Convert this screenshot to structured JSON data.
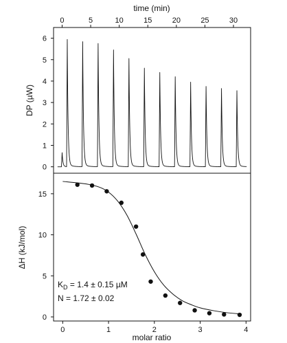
{
  "chart_data": [
    {
      "type": "line",
      "panel": "top",
      "xlabel": "time (min)",
      "ylabel": "DP (µW)",
      "xlim": [
        -1.5,
        33
      ],
      "ylim": [
        -0.3,
        6.5
      ],
      "x_ticks": [
        0,
        5,
        10,
        15,
        20,
        25,
        30
      ],
      "y_ticks": [
        0,
        1,
        2,
        3,
        4,
        5,
        6
      ],
      "grid": false,
      "baseline": 0,
      "series": [
        {
          "injection_time": [
            0.0,
            0.9,
            3.6,
            6.3,
            9.0,
            11.7,
            14.4,
            17.1,
            19.8,
            22.5,
            25.2,
            27.9,
            30.6
          ],
          "peak_height": [
            0.65,
            5.85,
            5.75,
            5.75,
            5.45,
            5.05,
            4.6,
            4.4,
            4.2,
            3.95,
            3.75,
            3.65,
            3.55
          ]
        }
      ]
    },
    {
      "type": "scatter",
      "panel": "bottom",
      "xlabel": "molar ratio",
      "ylabel": "ΔH (kJ/mol)",
      "xlim": [
        -0.2,
        4.1
      ],
      "ylim": [
        -0.5,
        17.5
      ],
      "x_ticks": [
        0,
        1,
        2,
        3,
        4
      ],
      "y_ticks": [
        0,
        5,
        10,
        15
      ],
      "grid": false,
      "series": [
        {
          "x": [
            0.32,
            0.64,
            0.96,
            1.28,
            1.6,
            1.75,
            1.92,
            2.24,
            2.56,
            2.88,
            3.2,
            3.52,
            3.86
          ],
          "y": [
            16.1,
            16.0,
            15.3,
            13.9,
            11.0,
            7.6,
            4.3,
            2.6,
            1.7,
            0.8,
            0.45,
            0.3,
            0.25
          ]
        },
        {
          "type": "line",
          "x": [
            0.0,
            0.5,
            0.8,
            1.0,
            1.2,
            1.4,
            1.6,
            1.8,
            2.0,
            2.2,
            2.4,
            2.6,
            2.8,
            3.0,
            3.3,
            3.6,
            3.9
          ],
          "y": [
            16.5,
            16.2,
            15.8,
            15.2,
            14.1,
            12.4,
            10.1,
            7.6,
            5.5,
            3.9,
            2.8,
            2.0,
            1.5,
            1.1,
            0.75,
            0.5,
            0.35
          ]
        }
      ],
      "annotations": {
        "kd_prefix": "K",
        "kd_sub": "D",
        "kd_value": " = 1.4 ± 0.15 µM",
        "n_line": "N  = 1.72 ± 0.02"
      }
    }
  ]
}
